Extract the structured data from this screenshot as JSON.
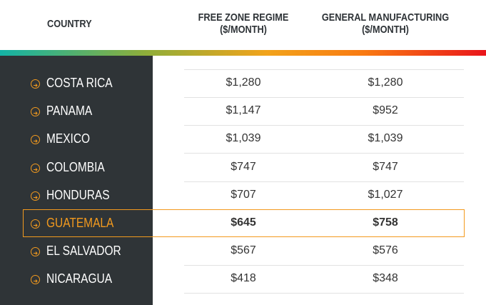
{
  "header": {
    "columns": [
      {
        "lines": [
          "COUNTRY"
        ]
      },
      {
        "lines": [
          "FREE ZONE REGIME",
          "($/MONTH)"
        ]
      },
      {
        "lines": [
          "GENERAL MANUFACTURING",
          "($/MONTH)"
        ]
      }
    ]
  },
  "table": {
    "rows": [
      {
        "country": "COSTA RICA",
        "free_zone": "$1,280",
        "general_manufacturing": "$1,280"
      },
      {
        "country": "PANAMA",
        "free_zone": "$1,147",
        "general_manufacturing": "$952"
      },
      {
        "country": "MEXICO",
        "free_zone": "$1,039",
        "general_manufacturing": "$1,039"
      },
      {
        "country": "COLOMBIA",
        "free_zone": "$747",
        "general_manufacturing": "$747"
      },
      {
        "country": "HONDURAS",
        "free_zone": "$707",
        "general_manufacturing": "$1,027"
      },
      {
        "country": "GUATEMALA",
        "free_zone": "$645",
        "general_manufacturing": "$758",
        "highlighted": true
      },
      {
        "country": "EL SALVADOR",
        "free_zone": "$567",
        "general_manufacturing": "$576"
      },
      {
        "country": "NICARAGUA",
        "free_zone": "$418",
        "general_manufacturing": "$348"
      }
    ]
  }
}
